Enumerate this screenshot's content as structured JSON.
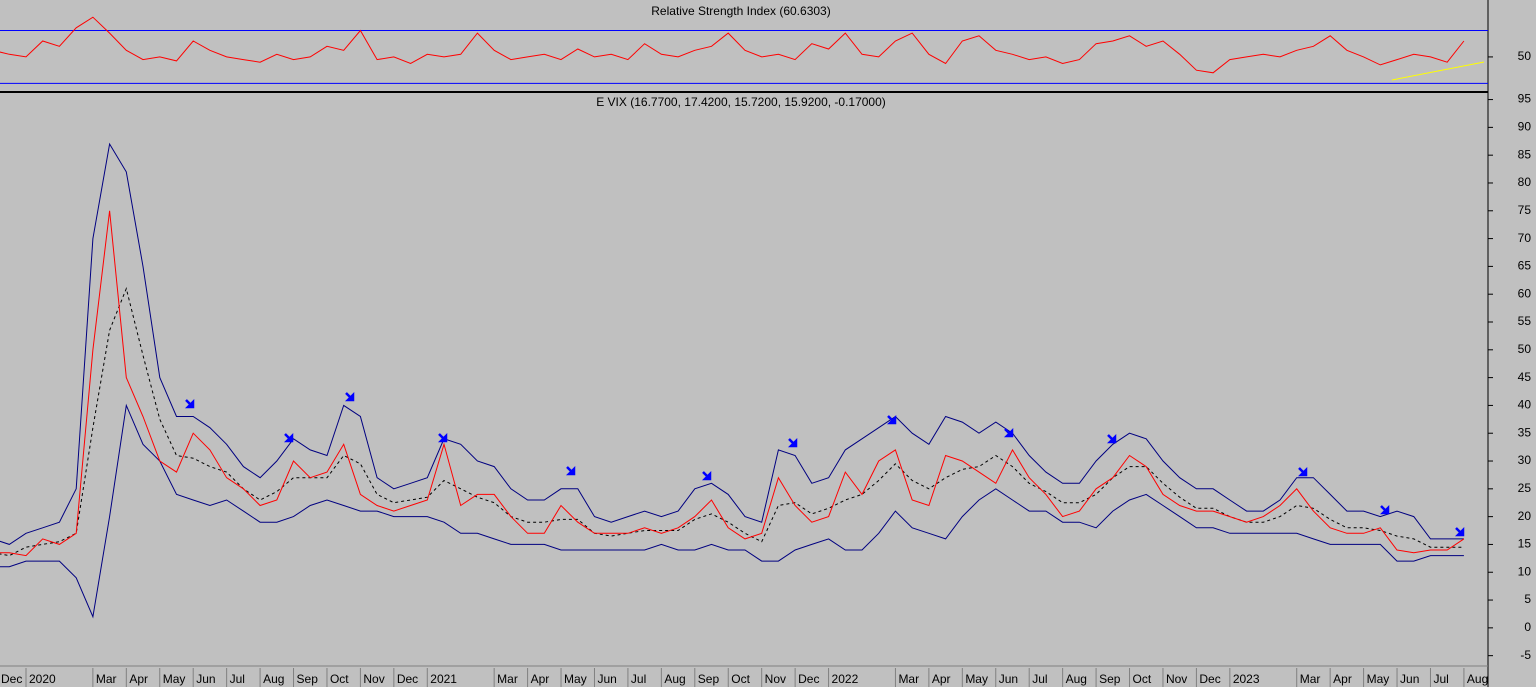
{
  "chart_data": [
    {
      "type": "line",
      "title": "Relative Strength Index (60.6303)",
      "color": "#ff0000",
      "values": [
        55,
        52,
        50,
        62,
        58,
        72,
        80,
        68,
        55,
        48,
        50,
        47,
        62,
        55,
        50,
        48,
        46,
        52,
        48,
        50,
        58,
        55,
        70,
        48,
        50,
        45,
        52,
        50,
        52,
        68,
        55,
        48,
        50,
        52,
        48,
        56,
        50,
        52,
        48,
        60,
        52,
        50,
        55,
        58,
        68,
        55,
        50,
        52,
        48,
        60,
        56,
        68,
        52,
        50,
        62,
        68,
        52,
        45,
        62,
        66,
        55,
        52,
        48,
        50,
        45,
        48,
        60,
        62,
        66,
        58,
        62,
        52,
        40,
        38,
        48,
        50,
        52,
        50,
        55,
        58,
        66,
        55,
        50,
        44,
        48,
        52,
        50,
        46,
        62
      ],
      "ylim": [
        25,
        90
      ],
      "yticks": [
        50
      ],
      "levels": [
        30,
        70
      ],
      "level_color": "#0000ff"
    },
    {
      "type": "line",
      "title": "E VIX (16.7700, 17.4200, 15.7200, 15.9200, -0.17000)",
      "categories": [
        "Dec",
        null,
        "2020",
        null,
        null,
        null,
        "Mar",
        null,
        "Apr",
        null,
        "May",
        null,
        "Jun",
        null,
        "Jul",
        null,
        "Aug",
        null,
        "Sep",
        null,
        "Oct",
        null,
        "Nov",
        null,
        "Dec",
        null,
        "2021",
        null,
        null,
        null,
        "Mar",
        null,
        "Apr",
        null,
        "May",
        null,
        "Jun",
        null,
        "Jul",
        null,
        "Aug",
        null,
        "Sep",
        null,
        "Oct",
        null,
        "Nov",
        null,
        "Dec",
        null,
        "2022",
        null,
        null,
        null,
        "Mar",
        null,
        "Apr",
        null,
        "May",
        null,
        "Jun",
        null,
        "Jul",
        null,
        "Aug",
        null,
        "Sep",
        null,
        "Oct",
        null,
        "Nov",
        null,
        "Dec",
        null,
        "2023",
        null,
        null,
        null,
        "Mar",
        null,
        "Apr",
        null,
        "May",
        null,
        "Jun",
        null,
        "Jul",
        null,
        "Aug"
      ],
      "series": [
        {
          "color": "#000080",
          "values": [
            16,
            15,
            17,
            18,
            19,
            25,
            70,
            87,
            82,
            65,
            45,
            38,
            38,
            36,
            33,
            29,
            27,
            30,
            34,
            32,
            31,
            40,
            38,
            27,
            25,
            26,
            27,
            34,
            33,
            30,
            29,
            25,
            23,
            23,
            25,
            25,
            20,
            19,
            20,
            21,
            20,
            21,
            25,
            26,
            24,
            20,
            19,
            32,
            31,
            26,
            27,
            32,
            34,
            36,
            38,
            35,
            33,
            38,
            37,
            35,
            37,
            35,
            31,
            28,
            26,
            26,
            30,
            33,
            35,
            34,
            30,
            27,
            25,
            25,
            23,
            21,
            21,
            23,
            27,
            27,
            24,
            21,
            21,
            20,
            21,
            20,
            16,
            16,
            16
          ]
        },
        {
          "color": "#000080",
          "values": [
            11,
            11,
            12,
            12,
            12,
            9,
            2,
            20,
            40,
            33,
            30,
            24,
            23,
            22,
            23,
            21,
            19,
            19,
            20,
            22,
            23,
            22,
            21,
            21,
            20,
            20,
            20,
            19,
            17,
            17,
            16,
            15,
            15,
            15,
            14,
            14,
            14,
            14,
            14,
            14,
            15,
            14,
            14,
            15,
            14,
            14,
            12,
            12,
            14,
            15,
            16,
            14,
            14,
            17,
            21,
            18,
            17,
            16,
            20,
            23,
            25,
            23,
            21,
            21,
            19,
            19,
            18,
            21,
            23,
            24,
            22,
            20,
            18,
            18,
            17,
            17,
            17,
            17,
            17,
            16,
            15,
            15,
            15,
            15,
            12,
            12,
            13,
            13,
            13
          ]
        },
        {
          "color": "#000000",
          "dash": true,
          "values": [
            13.5,
            13,
            14.5,
            15,
            15.5,
            17,
            36,
            53.5,
            61,
            49,
            37.5,
            31,
            30.5,
            29,
            28,
            25,
            23,
            24.5,
            27,
            27,
            27,
            31,
            29.5,
            24,
            22.5,
            23,
            23.5,
            26.5,
            25,
            23.5,
            22.5,
            20,
            19,
            19,
            19.5,
            19.5,
            17,
            16.5,
            17,
            17.5,
            17.5,
            17.5,
            19.5,
            20.5,
            19,
            17,
            15.5,
            22,
            22.5,
            20.5,
            21.5,
            23,
            24,
            26.5,
            29.5,
            26.5,
            25,
            27,
            28.5,
            29,
            31,
            29,
            26,
            24.5,
            22.5,
            22.5,
            24,
            27,
            29,
            29,
            26,
            23.5,
            21.5,
            21.5,
            20,
            19,
            19,
            20,
            22,
            21.5,
            19.5,
            18,
            18,
            17.5,
            16.5,
            16,
            14.5,
            14.5,
            14.5
          ]
        },
        {
          "color": "#ff0000",
          "values": [
            13.5,
            13.5,
            13,
            16,
            15,
            17,
            50,
            75,
            45,
            38,
            30,
            28,
            35,
            32,
            27,
            25,
            22,
            23,
            30,
            27,
            28,
            33,
            24,
            22,
            21,
            22,
            23,
            33,
            22,
            24,
            24,
            20,
            17,
            17,
            22,
            19,
            17,
            17,
            17,
            18,
            17,
            18,
            20,
            23,
            18,
            16,
            17,
            27,
            22,
            19,
            20,
            28,
            24,
            30,
            32,
            23,
            22,
            31,
            30,
            28,
            26,
            32,
            27,
            24,
            20,
            21,
            25,
            27,
            31,
            29,
            24,
            22,
            21,
            21,
            20,
            19,
            20,
            22,
            25,
            21,
            18,
            17,
            17,
            18,
            14,
            13.5,
            14,
            14,
            16
          ]
        }
      ],
      "ylim": [
        -6.5,
        96
      ],
      "yticks": [
        -5,
        0,
        5,
        10,
        15,
        20,
        25,
        30,
        35,
        40,
        45,
        50,
        55,
        60,
        65,
        70,
        75,
        80,
        85,
        90,
        95
      ]
    }
  ]
}
